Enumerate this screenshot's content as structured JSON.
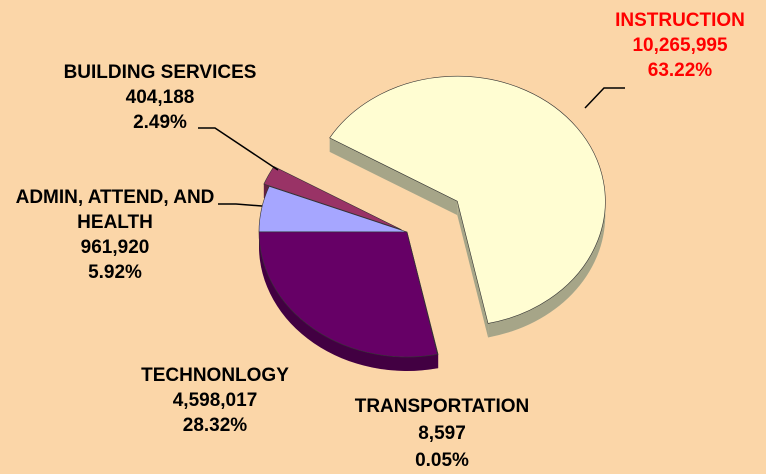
{
  "chart_data": {
    "type": "pie",
    "categories": [
      "INSTRUCTION",
      "BUILDING SERVICES",
      "ADMIN, ATTEND, AND HEALTH",
      "TECHNONLOGY",
      "TRANSPORTATION"
    ],
    "values": [
      10265995,
      404188,
      961920,
      4598017,
      8597
    ],
    "value_labels": [
      "10,265,995",
      "404,188",
      "961,920",
      "4,598,017",
      "8,597"
    ],
    "percents": [
      63.22,
      2.49,
      5.92,
      28.32,
      0.05
    ],
    "percent_labels": [
      "63.22%",
      "2.49%",
      "5.92%",
      "28.32%",
      "0.05%"
    ],
    "colors": [
      "#fffdd2",
      "#993366",
      "#a6a6ff",
      "#660066",
      "#660066"
    ],
    "label_colors": [
      "#ff0000",
      "#000000",
      "#000000",
      "#000000",
      "#000000"
    ],
    "background": "#fbd6a8"
  }
}
